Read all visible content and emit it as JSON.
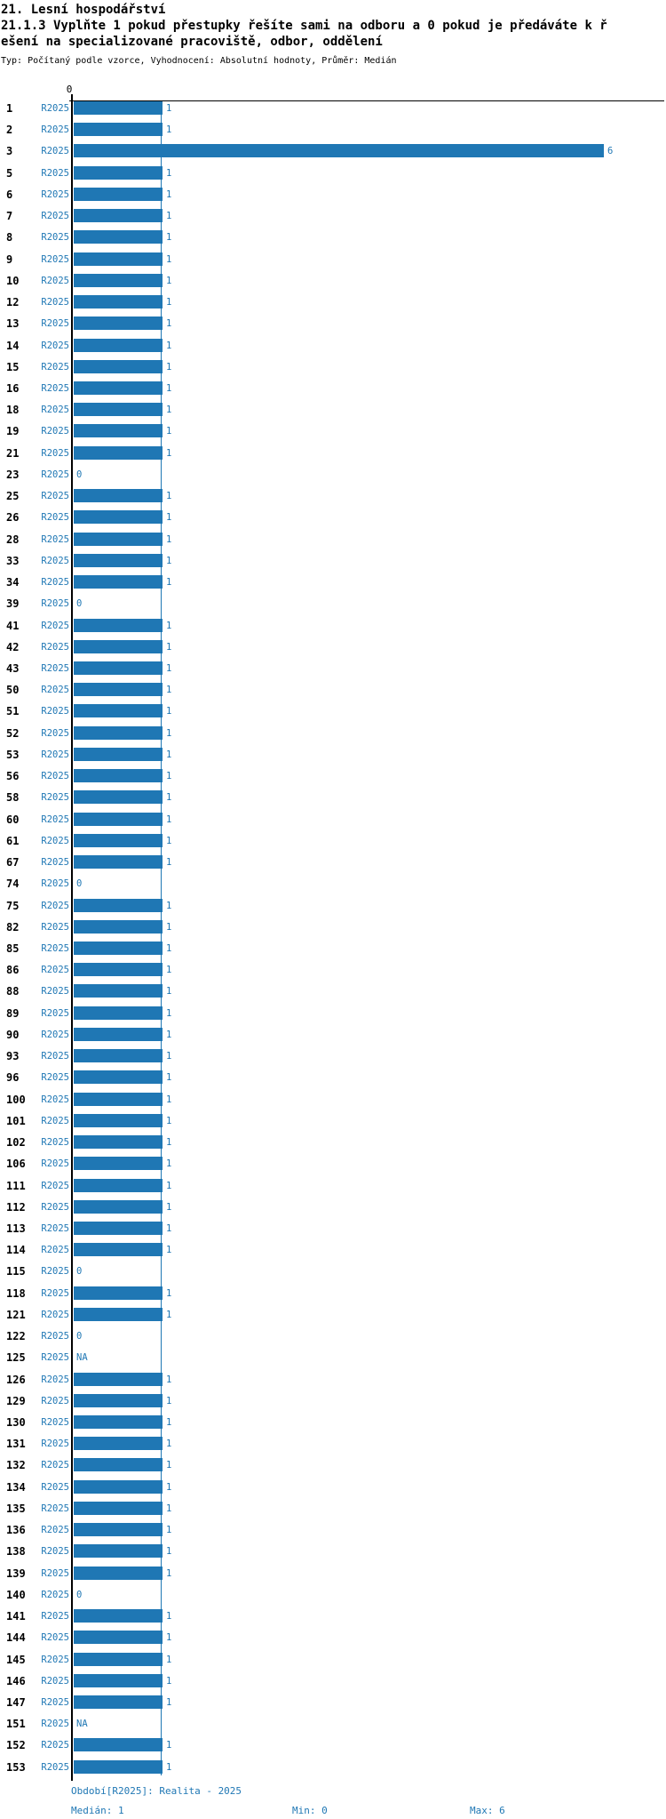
{
  "header": {
    "title": "21. Lesní hospodářství",
    "subtitle_line1": "21.1.3 Vyplňte 1 pokud přestupky řešíte sami na odboru a 0 pokud je předáváte k ř",
    "subtitle_line2": "ešení na specializované pracoviště, odbor, oddělení",
    "meta": "Typ: Počítaný podle vzorce, Vyhodnocení: Absolutní hodnoty, Průměr: Medián"
  },
  "chart_data": {
    "type": "bar",
    "orientation": "horizontal",
    "title": "21.1.3 Vyplňte 1 pokud přestupky řešíte sami na odboru a 0 pokud je předáváte k řešení na specializované pracoviště, odbor, oddělení",
    "series_label": "R2025",
    "axis_tick_label": "0",
    "xlim": [
      0,
      6.7
    ],
    "grid": false,
    "median_reference_line": 1,
    "colors": {
      "bar": "#1f77b4",
      "label_text": "#1f77b4",
      "axis": "#000000",
      "median_line": "#1f77b4"
    },
    "categories": [
      "1",
      "2",
      "3",
      "5",
      "6",
      "7",
      "8",
      "9",
      "10",
      "12",
      "13",
      "14",
      "15",
      "16",
      "18",
      "19",
      "21",
      "23",
      "25",
      "26",
      "28",
      "33",
      "34",
      "39",
      "41",
      "42",
      "43",
      "50",
      "51",
      "52",
      "53",
      "56",
      "58",
      "60",
      "61",
      "67",
      "74",
      "75",
      "82",
      "85",
      "86",
      "88",
      "89",
      "90",
      "93",
      "96",
      "100",
      "101",
      "102",
      "106",
      "111",
      "112",
      "113",
      "114",
      "115",
      "118",
      "121",
      "122",
      "125",
      "126",
      "129",
      "130",
      "131",
      "132",
      "134",
      "135",
      "136",
      "138",
      "139",
      "140",
      "141",
      "144",
      "145",
      "146",
      "147",
      "151",
      "152",
      "153"
    ],
    "rows": [
      {
        "id": "1",
        "value": "1"
      },
      {
        "id": "2",
        "value": "1"
      },
      {
        "id": "3",
        "value": "6"
      },
      {
        "id": "5",
        "value": "1"
      },
      {
        "id": "6",
        "value": "1"
      },
      {
        "id": "7",
        "value": "1"
      },
      {
        "id": "8",
        "value": "1"
      },
      {
        "id": "9",
        "value": "1"
      },
      {
        "id": "10",
        "value": "1"
      },
      {
        "id": "12",
        "value": "1"
      },
      {
        "id": "13",
        "value": "1"
      },
      {
        "id": "14",
        "value": "1"
      },
      {
        "id": "15",
        "value": "1"
      },
      {
        "id": "16",
        "value": "1"
      },
      {
        "id": "18",
        "value": "1"
      },
      {
        "id": "19",
        "value": "1"
      },
      {
        "id": "21",
        "value": "1"
      },
      {
        "id": "23",
        "value": "0"
      },
      {
        "id": "25",
        "value": "1"
      },
      {
        "id": "26",
        "value": "1"
      },
      {
        "id": "28",
        "value": "1"
      },
      {
        "id": "33",
        "value": "1"
      },
      {
        "id": "34",
        "value": "1"
      },
      {
        "id": "39",
        "value": "0"
      },
      {
        "id": "41",
        "value": "1"
      },
      {
        "id": "42",
        "value": "1"
      },
      {
        "id": "43",
        "value": "1"
      },
      {
        "id": "50",
        "value": "1"
      },
      {
        "id": "51",
        "value": "1"
      },
      {
        "id": "52",
        "value": "1"
      },
      {
        "id": "53",
        "value": "1"
      },
      {
        "id": "56",
        "value": "1"
      },
      {
        "id": "58",
        "value": "1"
      },
      {
        "id": "60",
        "value": "1"
      },
      {
        "id": "61",
        "value": "1"
      },
      {
        "id": "67",
        "value": "1"
      },
      {
        "id": "74",
        "value": "0"
      },
      {
        "id": "75",
        "value": "1"
      },
      {
        "id": "82",
        "value": "1"
      },
      {
        "id": "85",
        "value": "1"
      },
      {
        "id": "86",
        "value": "1"
      },
      {
        "id": "88",
        "value": "1"
      },
      {
        "id": "89",
        "value": "1"
      },
      {
        "id": "90",
        "value": "1"
      },
      {
        "id": "93",
        "value": "1"
      },
      {
        "id": "96",
        "value": "1"
      },
      {
        "id": "100",
        "value": "1"
      },
      {
        "id": "101",
        "value": "1"
      },
      {
        "id": "102",
        "value": "1"
      },
      {
        "id": "106",
        "value": "1"
      },
      {
        "id": "111",
        "value": "1"
      },
      {
        "id": "112",
        "value": "1"
      },
      {
        "id": "113",
        "value": "1"
      },
      {
        "id": "114",
        "value": "1"
      },
      {
        "id": "115",
        "value": "0"
      },
      {
        "id": "118",
        "value": "1"
      },
      {
        "id": "121",
        "value": "1"
      },
      {
        "id": "122",
        "value": "0"
      },
      {
        "id": "125",
        "value": "NA"
      },
      {
        "id": "126",
        "value": "1"
      },
      {
        "id": "129",
        "value": "1"
      },
      {
        "id": "130",
        "value": "1"
      },
      {
        "id": "131",
        "value": "1"
      },
      {
        "id": "132",
        "value": "1"
      },
      {
        "id": "134",
        "value": "1"
      },
      {
        "id": "135",
        "value": "1"
      },
      {
        "id": "136",
        "value": "1"
      },
      {
        "id": "138",
        "value": "1"
      },
      {
        "id": "139",
        "value": "1"
      },
      {
        "id": "140",
        "value": "0"
      },
      {
        "id": "141",
        "value": "1"
      },
      {
        "id": "144",
        "value": "1"
      },
      {
        "id": "145",
        "value": "1"
      },
      {
        "id": "146",
        "value": "1"
      },
      {
        "id": "147",
        "value": "1"
      },
      {
        "id": "151",
        "value": "NA"
      },
      {
        "id": "152",
        "value": "1"
      },
      {
        "id": "153",
        "value": "1"
      }
    ]
  },
  "footer": {
    "period": "Období[R2025]: Realita - 2025",
    "median": "Medián: 1",
    "min": "Min: 0",
    "max": "Max: 6"
  }
}
